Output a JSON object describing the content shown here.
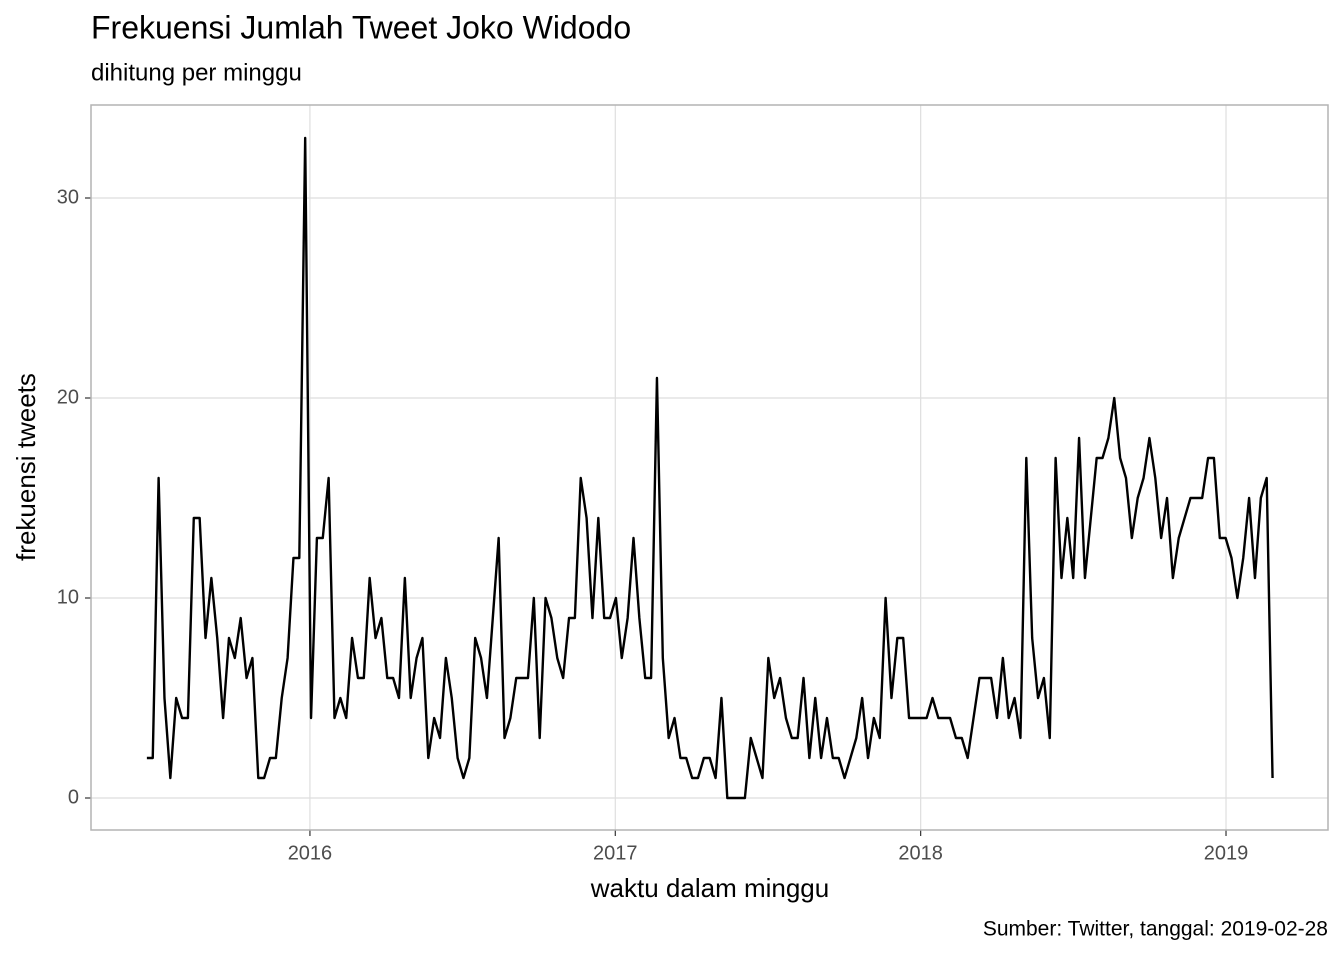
{
  "chart_data": {
    "type": "line",
    "title": "Frekuensi Jumlah Tweet Joko Widodo",
    "subtitle": "dihitung per minggu",
    "x_label": "waktu dalam minggu",
    "y_label": "frekuensi tweets",
    "caption": "Sumber: Twitter, tanggal: 2019-02-28",
    "color": "#000000",
    "grid": true,
    "xlim": [
      2015.283,
      2019.334
    ],
    "ylim": [
      -1.6,
      34.65
    ],
    "xticks": [
      2016,
      2017,
      2018,
      2019
    ],
    "yticks": [
      0,
      10,
      20,
      30
    ],
    "x": [
      2015.466,
      2015.4852,
      2015.5044,
      2015.5236,
      2015.5428,
      2015.562,
      2015.5812,
      2015.6004,
      2015.6196,
      2015.6388,
      2015.658,
      2015.6772,
      2015.6964,
      2015.7156,
      2015.7348,
      2015.754,
      2015.7732,
      2015.7924,
      2015.8116,
      2015.8308,
      2015.85,
      2015.8692,
      2015.8884,
      2015.9076,
      2015.9268,
      2015.946,
      2015.9652,
      2015.9844,
      2016.0036,
      2016.0228,
      2016.042,
      2016.0612,
      2016.0804,
      2016.0996,
      2016.1188,
      2016.138,
      2016.1572,
      2016.1764,
      2016.1956,
      2016.2148,
      2016.234,
      2016.2532,
      2016.2724,
      2016.2916,
      2016.3108,
      2016.33,
      2016.3492,
      2016.3684,
      2016.3876,
      2016.4068,
      2016.426,
      2016.4452,
      2016.4644,
      2016.4836,
      2016.5028,
      2016.522,
      2016.5412,
      2016.5604,
      2016.5796,
      2016.5988,
      2016.618,
      2016.6372,
      2016.6564,
      2016.6756,
      2016.6948,
      2016.714,
      2016.7332,
      2016.7524,
      2016.7716,
      2016.7908,
      2016.81,
      2016.8292,
      2016.8484,
      2016.8676,
      2016.8868,
      2016.906,
      2016.9252,
      2016.9444,
      2016.9636,
      2016.9828,
      2017.002,
      2017.0212,
      2017.0404,
      2017.0596,
      2017.0788,
      2017.098,
      2017.1172,
      2017.1364,
      2017.1556,
      2017.1748,
      2017.194,
      2017.2132,
      2017.2324,
      2017.2516,
      2017.2708,
      2017.29,
      2017.3092,
      2017.3284,
      2017.3476,
      2017.3668,
      2017.386,
      2017.4052,
      2017.4244,
      2017.4436,
      2017.4628,
      2017.482,
      2017.5012,
      2017.5204,
      2017.5396,
      2017.5588,
      2017.578,
      2017.5972,
      2017.6164,
      2017.6356,
      2017.6548,
      2017.674,
      2017.6932,
      2017.7124,
      2017.7316,
      2017.7508,
      2017.77,
      2017.7892,
      2017.8084,
      2017.8276,
      2017.8468,
      2017.866,
      2017.8852,
      2017.9044,
      2017.9236,
      2017.9428,
      2017.962,
      2017.9812,
      2018.0004,
      2018.0196,
      2018.0388,
      2018.058,
      2018.0772,
      2018.0964,
      2018.1156,
      2018.1348,
      2018.154,
      2018.1732,
      2018.1924,
      2018.2116,
      2018.2308,
      2018.25,
      2018.2692,
      2018.2884,
      2018.3076,
      2018.3268,
      2018.346,
      2018.3652,
      2018.3844,
      2018.4036,
      2018.4228,
      2018.442,
      2018.4612,
      2018.4804,
      2018.4996,
      2018.5188,
      2018.538,
      2018.5572,
      2018.5764,
      2018.5956,
      2018.6148,
      2018.634,
      2018.6532,
      2018.6724,
      2018.6916,
      2018.7108,
      2018.73,
      2018.7492,
      2018.7684,
      2018.7876,
      2018.8068,
      2018.826,
      2018.8452,
      2018.8644,
      2018.8836,
      2018.9028,
      2018.922,
      2018.9412,
      2018.9604,
      2018.9796,
      2018.9988,
      2019.018,
      2019.0372,
      2019.0564,
      2019.0756,
      2019.0948,
      2019.114,
      2019.1332,
      2019.1524
    ],
    "values": [
      2,
      2,
      16,
      5,
      1,
      5,
      4,
      4,
      14,
      14,
      8,
      11,
      8,
      4,
      8,
      7,
      9,
      6,
      7,
      1,
      1,
      2,
      2,
      5,
      7,
      12,
      12,
      33,
      4,
      13,
      13,
      16,
      4,
      5,
      4,
      8,
      6,
      6,
      11,
      8,
      9,
      6,
      6,
      5,
      11,
      5,
      7,
      8,
      2,
      4,
      3,
      7,
      5,
      2,
      1,
      2,
      8,
      7,
      5,
      9,
      13,
      3,
      4,
      6,
      6,
      6,
      10,
      3,
      10,
      9,
      7,
      6,
      9,
      9,
      16,
      14,
      9,
      14,
      9,
      9,
      10,
      7,
      9,
      13,
      9,
      6,
      6,
      21,
      7,
      3,
      4,
      2,
      2,
      1,
      1,
      2,
      2,
      1,
      5,
      0,
      0,
      0,
      0,
      3,
      2,
      1,
      7,
      5,
      6,
      4,
      3,
      3,
      6,
      2,
      5,
      2,
      4,
      2,
      2,
      1,
      2,
      3,
      5,
      2,
      4,
      3,
      10,
      5,
      8,
      8,
      4,
      4,
      4,
      4,
      5,
      4,
      4,
      4,
      3,
      3,
      2,
      4,
      6,
      6,
      6,
      4,
      7,
      4,
      5,
      3,
      17,
      8,
      5,
      6,
      3,
      17,
      11,
      14,
      11,
      18,
      11,
      14,
      17,
      17,
      18,
      20,
      17,
      16,
      13,
      15,
      16,
      18,
      16,
      13,
      15,
      11,
      13,
      14,
      15,
      15,
      15,
      17,
      17,
      13,
      13,
      12,
      10,
      12,
      15,
      11,
      15,
      16,
      1
    ]
  }
}
